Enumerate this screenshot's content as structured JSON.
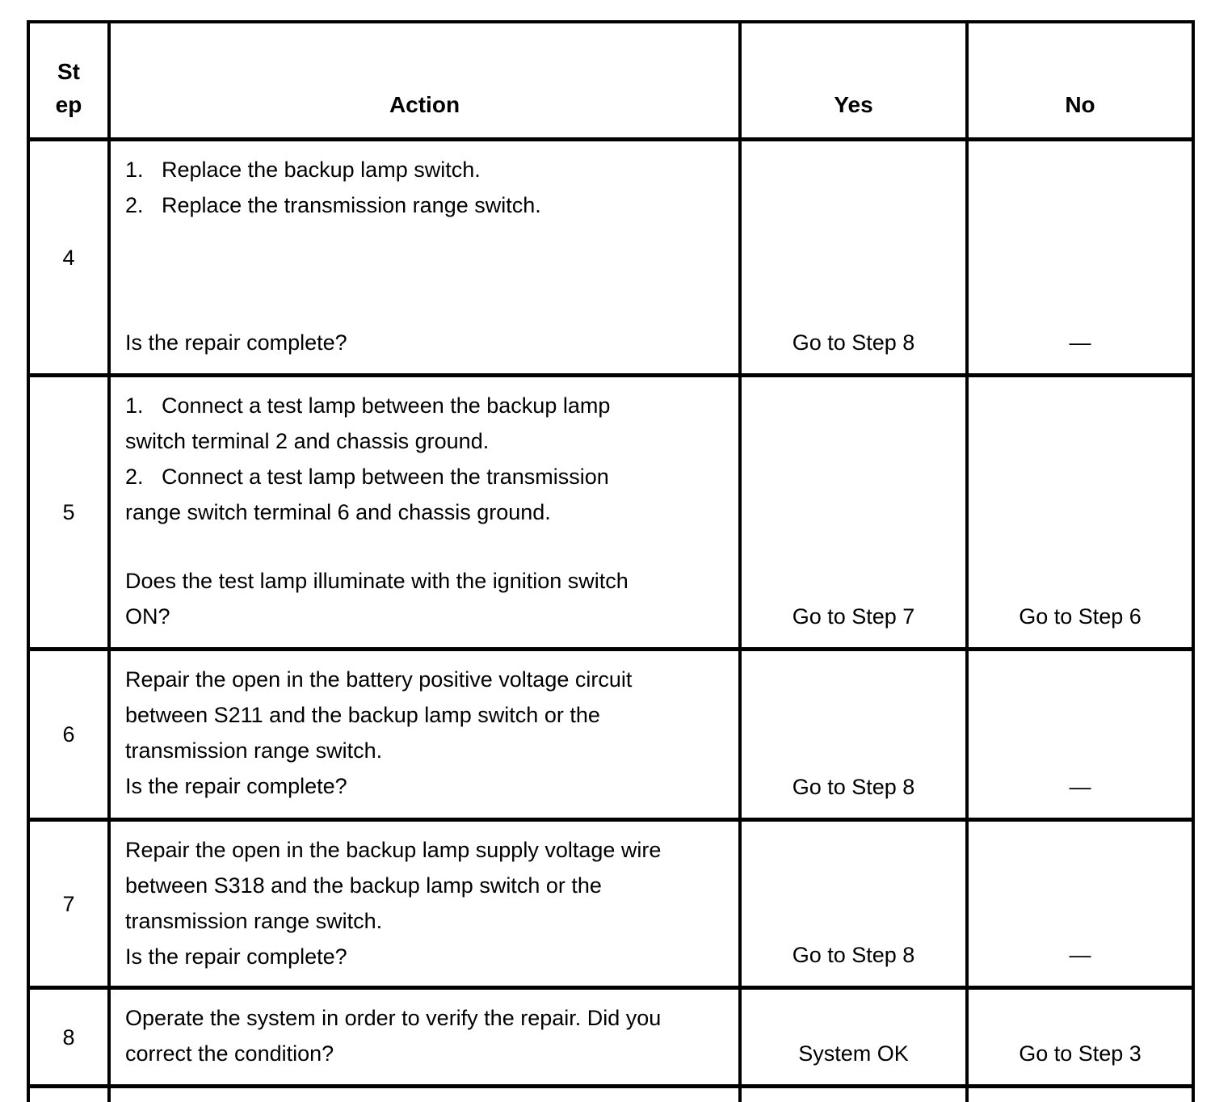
{
  "page": {
    "background_color": "#ffffff",
    "text_color": "#000000",
    "border_color": "#000000"
  },
  "table": {
    "headers": {
      "step_lines": [
        "St",
        "ep"
      ],
      "action": "Action",
      "yes": "Yes",
      "no": "No"
    },
    "rows": [
      {
        "step": "4",
        "layout": "spread",
        "top_lines": [
          "1.   Replace the backup lamp switch.",
          "2.   Replace the transmission range switch."
        ],
        "bottom_lines": [
          "Is the repair complete?"
        ],
        "yes": "Go to Step 8",
        "no": "—"
      },
      {
        "step": "5",
        "layout": "spread",
        "top_lines": [
          "1.   Connect a test lamp between the backup lamp",
          "switch terminal 2 and chassis ground.",
          "2.   Connect a test lamp between the transmission",
          "range switch terminal 6 and chassis ground."
        ],
        "bottom_lines": [
          "Does the test lamp illuminate with the ignition switch",
          "ON?"
        ],
        "yes": "Go to Step 7",
        "no": "Go to Step 6"
      },
      {
        "step": "6",
        "layout": "stack",
        "top_lines": [
          "Repair the open in the battery positive voltage circuit",
          "between S211 and the backup lamp switch or the",
          "transmission range switch.",
          "Is the repair complete?"
        ],
        "bottom_lines": [],
        "yes": "Go to Step 8",
        "no": "—"
      },
      {
        "step": "7",
        "layout": "stack",
        "top_lines": [
          "Repair the open in the backup lamp supply voltage wire",
          "between S318 and the backup lamp switch or the",
          "transmission range switch.",
          "Is the repair complete?"
        ],
        "bottom_lines": [],
        "yes": "Go to Step 8",
        "no": "—"
      },
      {
        "step": "8",
        "layout": "stack",
        "top_lines": [
          "Operate the system in order to verify the repair. Did you",
          "correct the condition?"
        ],
        "bottom_lines": [],
        "yes": "System OK",
        "no": "Go to Step 3"
      }
    ]
  }
}
